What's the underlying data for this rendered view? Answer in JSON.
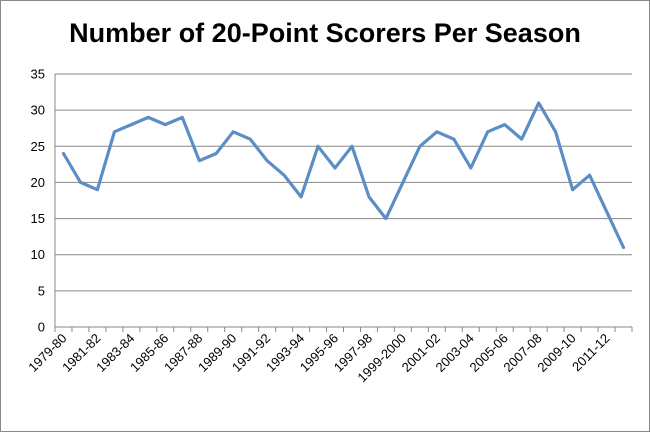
{
  "chart_data": {
    "type": "line",
    "title": "Number of 20-Point Scorers Per Season",
    "xlabel": "",
    "ylabel": "",
    "ylim": [
      0,
      35
    ],
    "yticks": [
      0,
      5,
      10,
      15,
      20,
      25,
      30,
      35
    ],
    "grid": "horizontal",
    "legend": "none",
    "x": [
      "1979-80",
      "1980-81",
      "1981-82",
      "1982-83",
      "1983-84",
      "1984-85",
      "1985-86",
      "1986-87",
      "1987-88",
      "1988-89",
      "1989-90",
      "1990-91",
      "1991-92",
      "1992-93",
      "1993-94",
      "1994-95",
      "1995-96",
      "1996-97",
      "1997-98",
      "1998-99",
      "1999-2000",
      "2000-01",
      "2001-02",
      "2002-03",
      "2003-04",
      "2004-05",
      "2005-06",
      "2006-07",
      "2007-08",
      "2008-09",
      "2009-10",
      "2010-11",
      "2011-12",
      "2012-13"
    ],
    "x_tick_labels": [
      "1979-80",
      "1981-82",
      "1983-84",
      "1985-86",
      "1987-88",
      "1989-90",
      "1991-92",
      "1993-94",
      "1995-96",
      "1997-98",
      "1999-2000",
      "2001-02",
      "2003-04",
      "2005-06",
      "2007-08",
      "2009-10",
      "2011-12"
    ],
    "series": [
      {
        "color": "#5b8ec4",
        "values": [
          24,
          20,
          19,
          27,
          28,
          29,
          28,
          29,
          23,
          24,
          27,
          26,
          23,
          21,
          18,
          25,
          22,
          25,
          18,
          15,
          20,
          25,
          27,
          26,
          22,
          27,
          28,
          26,
          31,
          27,
          19,
          21,
          16,
          11
        ]
      }
    ]
  }
}
